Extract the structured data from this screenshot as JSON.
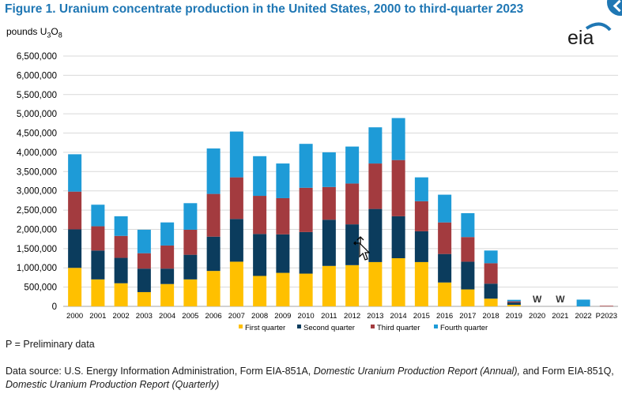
{
  "title": "Figure 1. Uranium concentrate production in the United States, 2000 to third-quarter 2023",
  "units": {
    "prefix": "pounds U",
    "sub1": "3",
    "mid": "O",
    "sub2": "8"
  },
  "logo_text": "eia",
  "footnote": "P = Preliminary data",
  "source": {
    "part1": "Data source: U.S. Energy Information Administration, Form EIA-851A, ",
    "italic1": "Domestic Uranium Production Report (Annual),",
    "part2": " and Form EIA-851Q, ",
    "italic2": "Domestic Uranium Production Report (Quarterly)"
  },
  "colors": {
    "q1": "#FFC000",
    "q2": "#0B3C5D",
    "q3": "#A33B3F",
    "q4": "#1E9BD7",
    "title": "#1f77b4",
    "grid": "#d9d9d9"
  },
  "chart_data": {
    "type": "bar",
    "stacked": true,
    "ylabel": "pounds U3O8",
    "ylim": [
      0,
      6500000
    ],
    "yticks": [
      "0",
      "500,000",
      "1,000,000",
      "1,500,000",
      "2,000,000",
      "2,500,000",
      "3,000,000",
      "3,500,000",
      "4,000,000",
      "4,500,000",
      "5,000,000",
      "5,500,000",
      "6,000,000",
      "6,500,000"
    ],
    "grid": "horizontal",
    "legend_position": "bottom",
    "categories": [
      "2000",
      "2001",
      "2002",
      "2003",
      "2004",
      "2005",
      "2006",
      "2007",
      "2008",
      "2009",
      "2010",
      "2011",
      "2012",
      "2013",
      "2014",
      "2015",
      "2016",
      "2017",
      "2018",
      "2019",
      "2020",
      "2021",
      "2022",
      "P2023"
    ],
    "series": [
      {
        "name": "First quarter",
        "values": [
          1000000,
          700000,
          600000,
          370000,
          580000,
          700000,
          920000,
          1160000,
          790000,
          870000,
          850000,
          1050000,
          1070000,
          1150000,
          1250000,
          1150000,
          620000,
          440000,
          200000,
          40000,
          null,
          null,
          0,
          0
        ]
      },
      {
        "name": "Second quarter",
        "values": [
          1000000,
          750000,
          660000,
          610000,
          400000,
          640000,
          890000,
          1110000,
          1090000,
          1000000,
          1080000,
          1200000,
          1060000,
          1380000,
          1090000,
          800000,
          740000,
          720000,
          390000,
          60000,
          null,
          null,
          0,
          0
        ]
      },
      {
        "name": "Third quarter",
        "values": [
          980000,
          630000,
          570000,
          400000,
          600000,
          650000,
          1110000,
          1080000,
          990000,
          940000,
          1150000,
          850000,
          1060000,
          1180000,
          1460000,
          780000,
          820000,
          640000,
          530000,
          30000,
          null,
          null,
          0,
          15000
        ]
      },
      {
        "name": "Fourth quarter",
        "values": [
          970000,
          560000,
          510000,
          610000,
          600000,
          690000,
          1180000,
          1190000,
          1030000,
          900000,
          1140000,
          900000,
          960000,
          940000,
          1090000,
          620000,
          720000,
          620000,
          330000,
          40000,
          null,
          null,
          175000,
          0
        ]
      }
    ],
    "annotations": [
      {
        "category": "2020",
        "text": "W"
      },
      {
        "category": "2021",
        "text": "W"
      }
    ]
  }
}
